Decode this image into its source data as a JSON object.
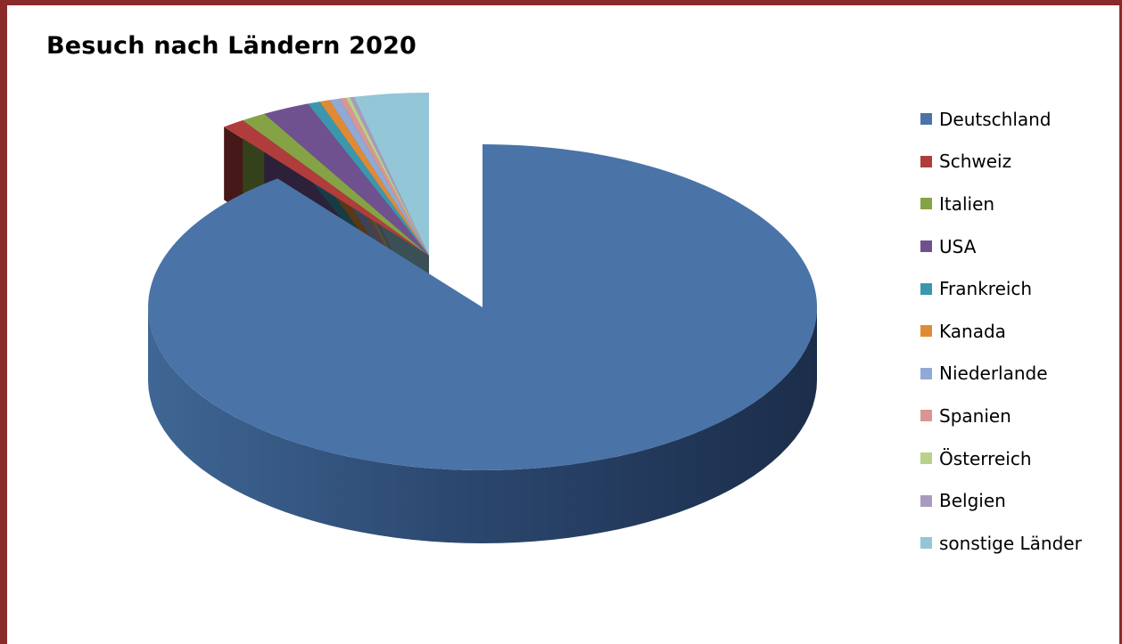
{
  "chart_data": {
    "type": "pie",
    "title": "Besuch nach Ländern 2020",
    "categories": [
      "Deutschland",
      "Schweiz",
      "Italien",
      "USA",
      "Frankreich",
      "Kanada",
      "Niederlande",
      "Spanien",
      "Österreich",
      "Belgien",
      "sonstige Länder"
    ],
    "values": [
      89.5,
      1.1,
      1.2,
      2.3,
      0.6,
      0.5,
      0.5,
      0.3,
      0.2,
      0.2,
      3.6
    ],
    "colors": [
      "#4a73a8",
      "#b03c3c",
      "#85a344",
      "#70518f",
      "#3b97ad",
      "#e08a35",
      "#90a9d6",
      "#d99594",
      "#b9d189",
      "#a99ac1",
      "#93c6d6"
    ],
    "style": "3d-exploded",
    "legend_position": "right"
  }
}
